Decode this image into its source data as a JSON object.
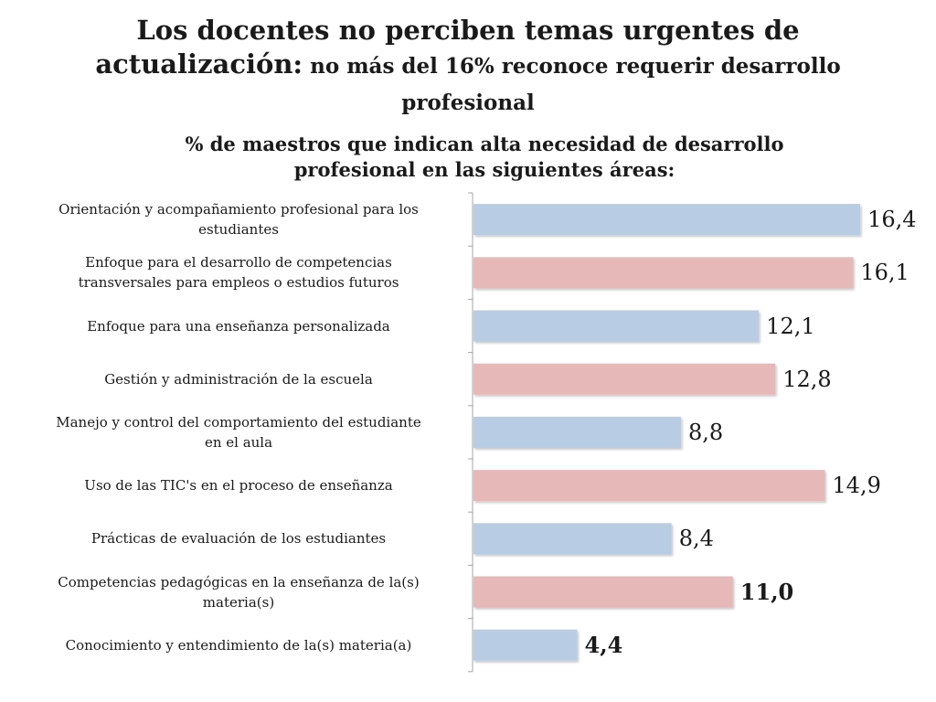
{
  "title": {
    "line_a": "Los docentes no perciben temas urgentes de",
    "line_b_big": "actualización:",
    "line_b_rest": " no más del 16% reconoce requerir desarrollo",
    "line_c": "profesional"
  },
  "chart_data": {
    "type": "bar",
    "orientation": "horizontal",
    "title": "% de maestros que indican alta necesidad de desarrollo profesional en las siguientes áreas:",
    "xlim": [
      0,
      17
    ],
    "categories": [
      "Orientación y acompañamiento profesional para los estudiantes",
      "Enfoque para el desarrollo de competencias transversales para empleos o estudios futuros",
      "Enfoque para una enseñanza personalizada",
      "Gestión y administración de la escuela",
      "Manejo y control del comportamiento del estudiante en el aula",
      "Uso de las TIC's en el proceso de enseñanza",
      "Prácticas de evaluación de los estudiantes",
      "Competencias pedagógicas en la enseñanza de la(s) materia(s)",
      "Conocimiento y entendimiento de la(s) materia(a)"
    ],
    "category_lines": [
      [
        "Orientación y acompañamiento profesional para los",
        "estudiantes"
      ],
      [
        "Enfoque para el desarrollo de competencias",
        "transversales para empleos o estudios futuros"
      ],
      [
        "Enfoque para una enseñanza personalizada"
      ],
      [
        "Gestión y administración de la escuela"
      ],
      [
        "Manejo y control del comportamiento del estudiante",
        "en el aula"
      ],
      [
        "Uso de las TIC's en el proceso de enseñanza"
      ],
      [
        "Prácticas de evaluación de los estudiantes"
      ],
      [
        "Competencias pedagógicas en la enseñanza de la(s)",
        "materia(s)"
      ],
      [
        "Conocimiento y entendimiento de la(s) materia(a)"
      ]
    ],
    "values": [
      16.4,
      16.1,
      12.1,
      12.8,
      8.8,
      14.9,
      8.4,
      11.0,
      4.4
    ],
    "value_labels": [
      "16,4",
      "16,1",
      "12,1",
      "12,8",
      "8,8",
      "14,9",
      "8,4",
      "11,0",
      "4,4"
    ],
    "bold_value_labels": [
      false,
      false,
      false,
      false,
      false,
      false,
      false,
      true,
      true
    ],
    "bar_colors": [
      "#b8cce4",
      "#e6b9b8",
      "#b8cce4",
      "#e6b9b8",
      "#b8cce4",
      "#e6b9b8",
      "#b8cce4",
      "#e6b9b8",
      "#b8cce4"
    ],
    "axis_color": "#a6a6a6",
    "grid": false
  }
}
